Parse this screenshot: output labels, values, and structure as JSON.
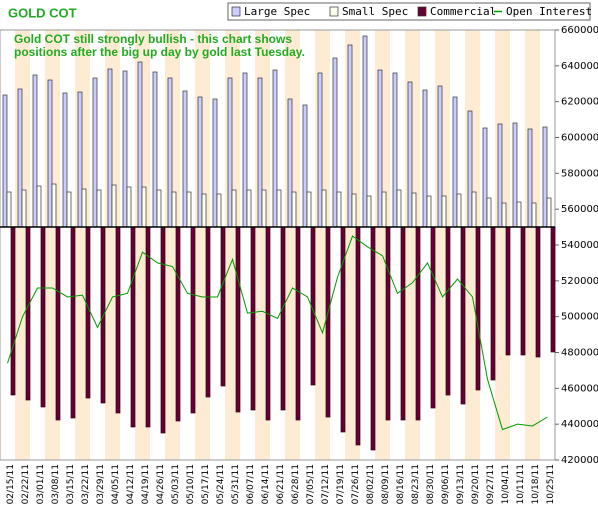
{
  "chart_data": {
    "type": "bar",
    "title": "GOLD COT",
    "annotations": [
      "Gold COT still strongly bullish - this chart shows",
      "positions after the big up day by gold last Tuesday."
    ],
    "categories": [
      "02/15/11",
      "02/22/11",
      "03/01/11",
      "03/08/11",
      "03/15/11",
      "03/22/11",
      "03/29/11",
      "04/05/11",
      "04/12/11",
      "04/19/11",
      "04/26/11",
      "05/03/11",
      "05/10/11",
      "05/17/11",
      "05/24/11",
      "05/31/11",
      "06/07/11",
      "06/14/11",
      "06/21/11",
      "06/28/11",
      "07/05/11",
      "07/12/11",
      "07/19/11",
      "07/26/11",
      "08/02/11",
      "08/09/11",
      "08/16/11",
      "08/23/11",
      "08/30/11",
      "09/06/11",
      "09/13/11",
      "09/20/11",
      "09/27/11",
      "10/04/11",
      "10/11/11",
      "10/18/11",
      "10/25/11"
    ],
    "ylim": [
      -349500,
      295500
    ],
    "y2lim": [
      420000,
      660000
    ],
    "y2ticks": [
      420000,
      440000,
      460000,
      480000,
      500000,
      520000,
      540000,
      560000,
      580000,
      600000,
      620000,
      640000,
      660000
    ],
    "series": [
      {
        "name": "Large Spec",
        "color": "#ccccff",
        "values": [
          198000,
          207000,
          228000,
          220500,
          201000,
          202500,
          223500,
          237000,
          234000,
          247500,
          232500,
          223500,
          204000,
          195000,
          192000,
          223500,
          231000,
          223500,
          235500,
          192000,
          183000,
          231000,
          253500,
          273000,
          286500,
          235500,
          231000,
          217500,
          205500,
          211500,
          195000,
          174000,
          148500,
          154500,
          156000,
          147000,
          150000
        ]
      },
      {
        "name": "Small Spec",
        "color": "#ffffee",
        "values": [
          52500,
          55500,
          61500,
          64500,
          52500,
          57000,
          55500,
          63000,
          60000,
          60000,
          55500,
          52500,
          52500,
          49500,
          49500,
          55500,
          55500,
          55500,
          55500,
          52500,
          52500,
          55500,
          52500,
          49500,
          46500,
          52500,
          55500,
          51000,
          46500,
          46500,
          49500,
          52500,
          43500,
          36000,
          37500,
          36000,
          43500
        ]
      },
      {
        "name": "Commercial",
        "color": "#660033",
        "values": [
          -252000,
          -259500,
          -270000,
          -289500,
          -286500,
          -256500,
          -264000,
          -279000,
          -300000,
          -300000,
          -309000,
          -291000,
          -279000,
          -255000,
          -238500,
          -277500,
          -274500,
          -289500,
          -274500,
          -289500,
          -237000,
          -285000,
          -307500,
          -327000,
          -334500,
          -289500,
          -289500,
          -289500,
          -271500,
          -252000,
          -265500,
          -244500,
          -229500,
          -192000,
          -192000,
          -195000,
          -187500
        ]
      },
      {
        "name": "Open Interest",
        "color": "#009900",
        "type": "line",
        "axis": "y2",
        "values": [
          474000,
          500000,
          516000,
          516000,
          511000,
          512000,
          494000,
          511000,
          513000,
          536000,
          530000,
          528000,
          513000,
          511000,
          511000,
          532000,
          502000,
          503000,
          499000,
          516000,
          511000,
          491000,
          522000,
          545000,
          539000,
          534000,
          513000,
          519000,
          530000,
          511000,
          521000,
          511000,
          465000,
          437000,
          440000,
          439000,
          444000
        ]
      }
    ]
  }
}
